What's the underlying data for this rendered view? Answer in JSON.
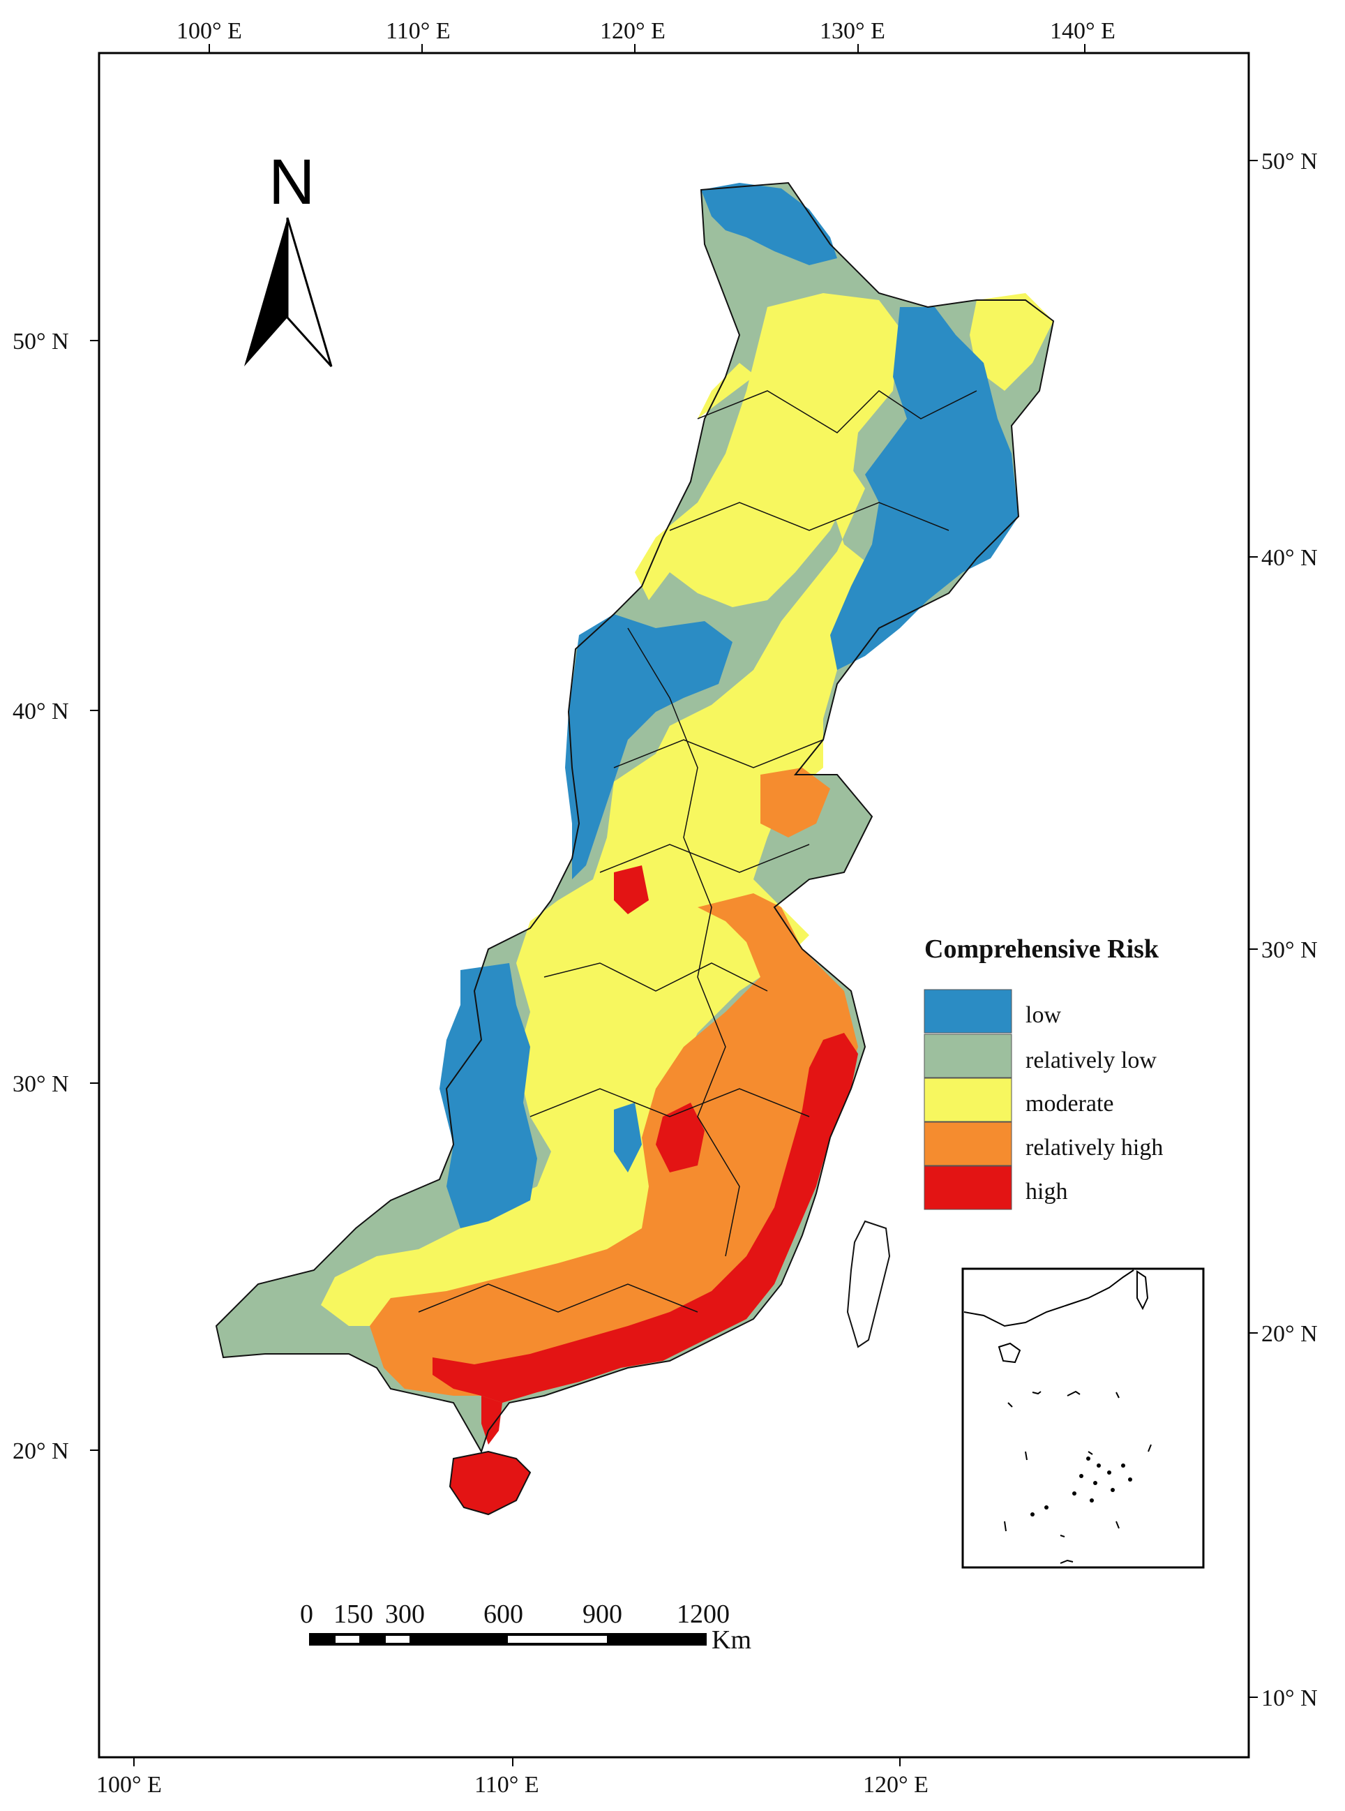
{
  "map": {
    "top_ticks": [
      "100° E",
      "110° E",
      "120° E",
      "130° E",
      "140° E"
    ],
    "bottom_ticks": [
      "100° E",
      "110° E",
      "120° E"
    ],
    "left_ticks": [
      "50° N",
      "40° N",
      "30° N",
      "20° N"
    ],
    "right_ticks": [
      "50° N",
      "40° N",
      "30° N",
      "20° N",
      "10° N"
    ]
  },
  "north_arrow": {
    "letter": "N"
  },
  "legend": {
    "title": "Comprehensive Risk",
    "items": [
      {
        "label": "low",
        "color": "#2B8CC4"
      },
      {
        "label": "relatively low",
        "color": "#9DBF9E"
      },
      {
        "label": "moderate",
        "color": "#F7F75F"
      },
      {
        "label": "relatively high",
        "color": "#F58C2F"
      },
      {
        "label": "high",
        "color": "#E31414"
      }
    ]
  },
  "scale_bar": {
    "labels": [
      "0",
      "150",
      "300",
      "600",
      "900",
      "1200"
    ],
    "unit": "Km"
  }
}
